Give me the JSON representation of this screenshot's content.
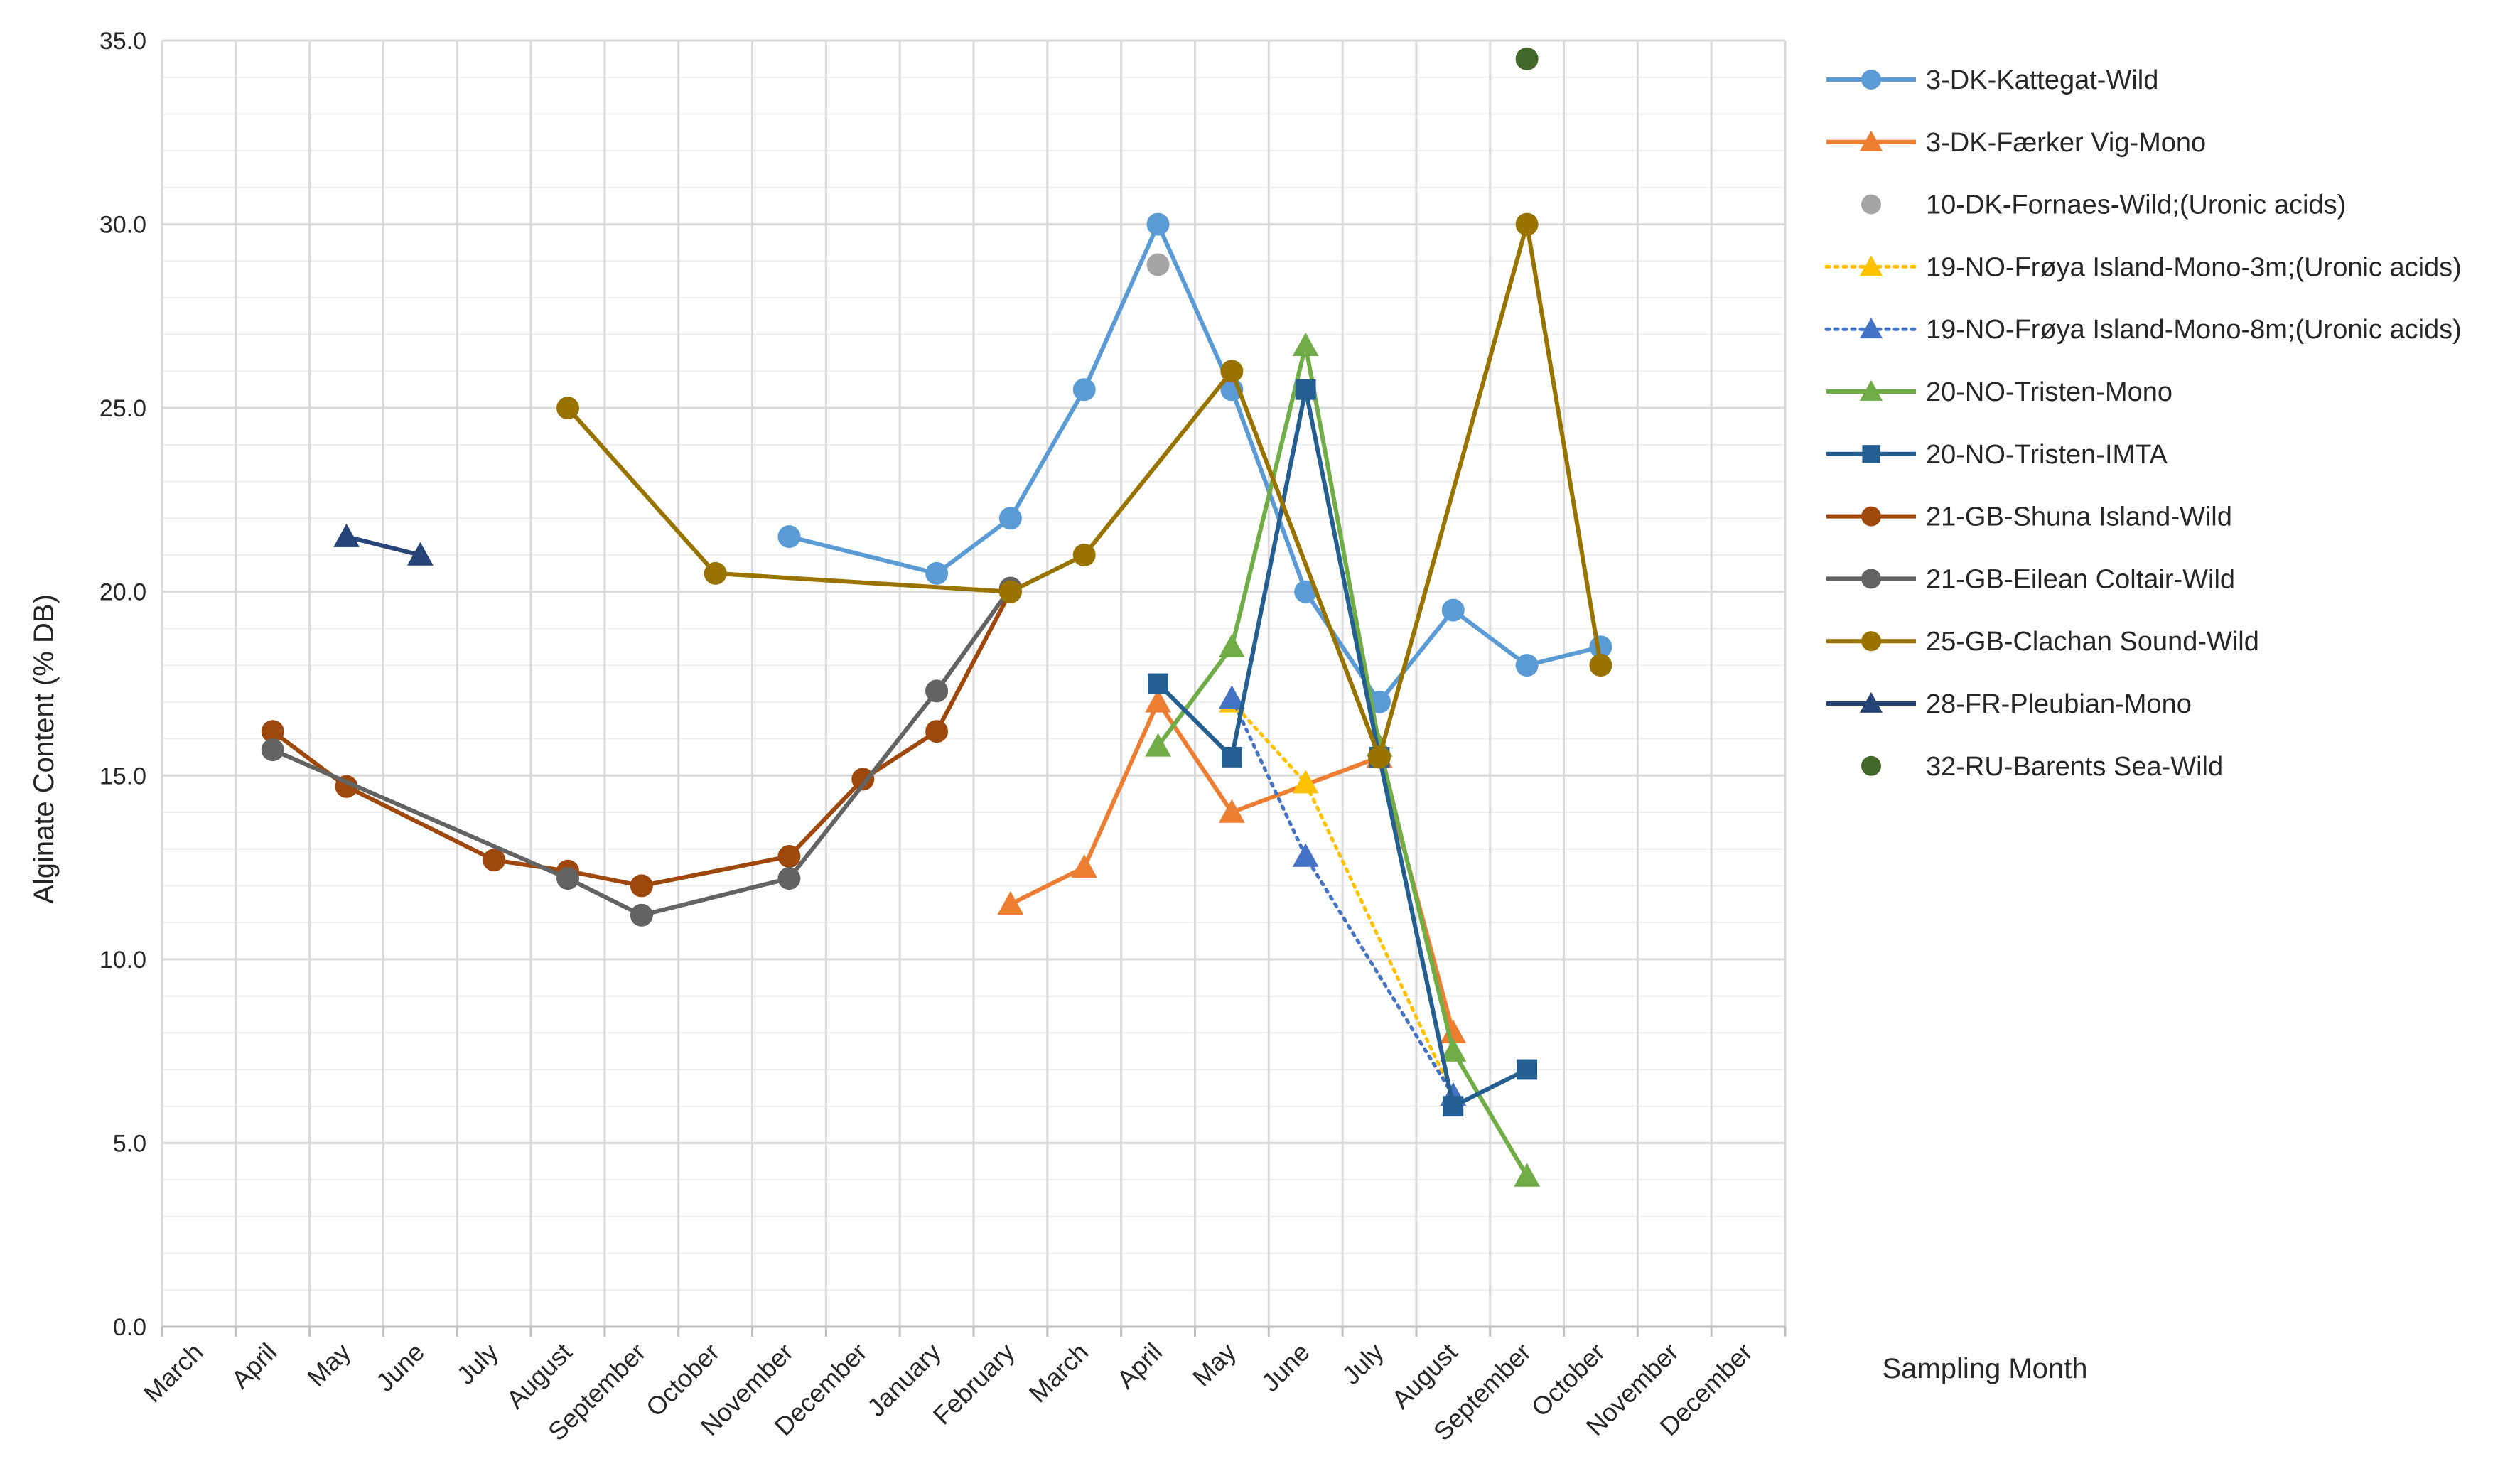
{
  "chart_data": {
    "type": "line",
    "title": "",
    "ylabel": "Alginate Content (% DB)",
    "xlabel": "Sampling Month",
    "ylim": [
      0,
      35
    ],
    "y_ticks": [
      "0.0",
      "5.0",
      "10.0",
      "15.0",
      "20.0",
      "25.0",
      "30.0",
      "35.0"
    ],
    "y_tick_values": [
      0,
      5,
      10,
      15,
      20,
      25,
      30,
      35
    ],
    "grid": true,
    "legend_position": "right",
    "categories": [
      "March",
      "April",
      "May",
      "June",
      "July",
      "August",
      "September",
      "October",
      "November",
      "December",
      "January",
      "February",
      "March",
      "April",
      "May",
      "June",
      "July",
      "August",
      "September",
      "October",
      "November",
      "December"
    ],
    "series": [
      {
        "name": "3-DK-Kattegat-Wild",
        "color": "#5B9BD5",
        "marker": "circle",
        "dash": "solid",
        "points": [
          [
            8.5,
            21.5
          ],
          [
            10.5,
            20.5
          ],
          [
            11.5,
            22.0
          ],
          [
            12.5,
            25.5
          ],
          [
            13.5,
            30.0
          ],
          [
            14.5,
            25.5
          ],
          [
            15.5,
            20.0
          ],
          [
            16.5,
            17.0
          ],
          [
            17.5,
            19.5
          ],
          [
            18.5,
            18.0
          ],
          [
            19.5,
            18.5
          ]
        ]
      },
      {
        "name": "3-DK-Færker Vig-Mono",
        "color": "#ED7D31",
        "marker": "triangle",
        "dash": "solid",
        "points": [
          [
            11.5,
            11.5
          ],
          [
            12.5,
            12.5
          ],
          [
            13.5,
            17.0
          ],
          [
            14.5,
            14.0
          ],
          [
            16.5,
            15.5
          ],
          [
            17.5,
            8.0
          ]
        ]
      },
      {
        "name": "10-DK-Fornaes-Wild;(Uronic acids)",
        "color": "#A5A5A5",
        "marker": "circle",
        "dash": "none",
        "points": [
          [
            13.5,
            28.9
          ]
        ]
      },
      {
        "name": "19-NO-Frøya Island-Mono-3m;(Uronic acids)",
        "color": "#FFC000",
        "marker": "triangle",
        "dash": "dot",
        "points": [
          [
            14.5,
            17.0
          ],
          [
            15.5,
            14.8
          ],
          [
            17.5,
            6.3
          ]
        ]
      },
      {
        "name": "19-NO-Frøya Island-Mono-8m;(Uronic acids)",
        "color": "#4472C4",
        "marker": "triangle",
        "dash": "dot",
        "points": [
          [
            14.5,
            17.1
          ],
          [
            15.5,
            12.8
          ],
          [
            17.5,
            6.3
          ]
        ]
      },
      {
        "name": "20-NO-Tristen-Mono",
        "color": "#70AD47",
        "marker": "triangle",
        "dash": "solid",
        "points": [
          [
            13.5,
            15.8
          ],
          [
            14.5,
            18.5
          ],
          [
            15.5,
            26.7
          ],
          [
            16.5,
            15.8
          ],
          [
            17.5,
            7.5
          ],
          [
            18.5,
            4.1
          ]
        ]
      },
      {
        "name": "20-NO-Tristen-IMTA",
        "color": "#255E91",
        "marker": "square",
        "dash": "solid",
        "points": [
          [
            13.5,
            17.5
          ],
          [
            14.5,
            15.5
          ],
          [
            15.5,
            25.5
          ],
          [
            16.5,
            15.5
          ],
          [
            17.5,
            6.0
          ],
          [
            18.5,
            7.0
          ]
        ]
      },
      {
        "name": "21-GB-Shuna Island-Wild",
        "color": "#9E480E",
        "marker": "circle",
        "dash": "solid",
        "points": [
          [
            1.5,
            16.2
          ],
          [
            2.5,
            14.7
          ],
          [
            4.5,
            12.7
          ],
          [
            5.5,
            12.4
          ],
          [
            6.5,
            12.0
          ],
          [
            8.5,
            12.8
          ],
          [
            9.5,
            14.9
          ],
          [
            10.5,
            16.2
          ],
          [
            11.5,
            20.0
          ]
        ]
      },
      {
        "name": "21-GB-Eilean Coltair-Wild",
        "color": "#636363",
        "marker": "circle",
        "dash": "solid",
        "points": [
          [
            1.5,
            15.7
          ],
          [
            5.5,
            12.2
          ],
          [
            6.5,
            11.2
          ],
          [
            8.5,
            12.2
          ],
          [
            10.5,
            17.3
          ],
          [
            11.5,
            20.1
          ]
        ]
      },
      {
        "name": "25-GB-Clachan Sound-Wild",
        "color": "#997300",
        "marker": "circle",
        "dash": "solid",
        "points": [
          [
            5.5,
            25.0
          ],
          [
            7.5,
            20.5
          ],
          [
            11.5,
            20.0
          ],
          [
            12.5,
            21.0
          ],
          [
            14.5,
            26.0
          ],
          [
            16.5,
            15.5
          ],
          [
            18.5,
            30.0
          ],
          [
            19.5,
            18.0
          ]
        ]
      },
      {
        "name": "28-FR-Pleubian-Mono",
        "color": "#264478",
        "marker": "triangle",
        "dash": "solid",
        "points": [
          [
            2.5,
            21.5
          ],
          [
            3.5,
            21.0
          ]
        ]
      },
      {
        "name": "32-RU-Barents Sea-Wild",
        "color": "#43682B",
        "marker": "circle",
        "dash": "none",
        "points": [
          [
            18.5,
            34.5
          ]
        ]
      }
    ]
  }
}
